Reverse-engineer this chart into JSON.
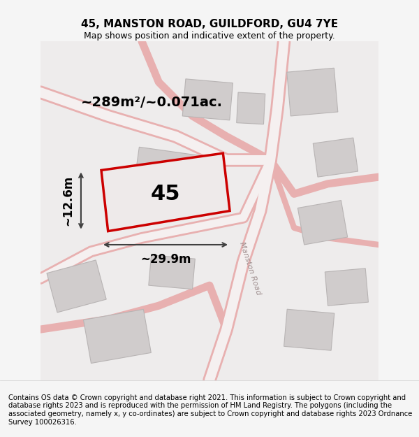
{
  "title": "45, MANSTON ROAD, GUILDFORD, GU4 7YE",
  "subtitle": "Map shows position and indicative extent of the property.",
  "area_label": "~289m²/~0.071ac.",
  "width_label": "~29.9m",
  "height_label": "~12.6m",
  "plot_number": "45",
  "footnote": "Contains OS data © Crown copyright and database right 2021. This information is subject to Crown copyright and database rights 2023 and is reproduced with the permission of HM Land Registry. The polygons (including the associated geometry, namely x, y co-ordinates) are subject to Crown copyright and database rights 2023 Ordnance Survey 100026316.",
  "bg_color": "#f5f5f5",
  "map_bg": "#f0eeee",
  "road_color": "#e8c8c8",
  "plot_outline_color": "#cc0000",
  "plot_fill_color": "#f0eeee",
  "building_fill": "#d8d4d4",
  "building_edge": "#b0acac",
  "title_fontsize": 11,
  "subtitle_fontsize": 9,
  "footnote_fontsize": 7.2,
  "label_fontsize": 13,
  "number_fontsize": 22,
  "area_fontsize": 14
}
